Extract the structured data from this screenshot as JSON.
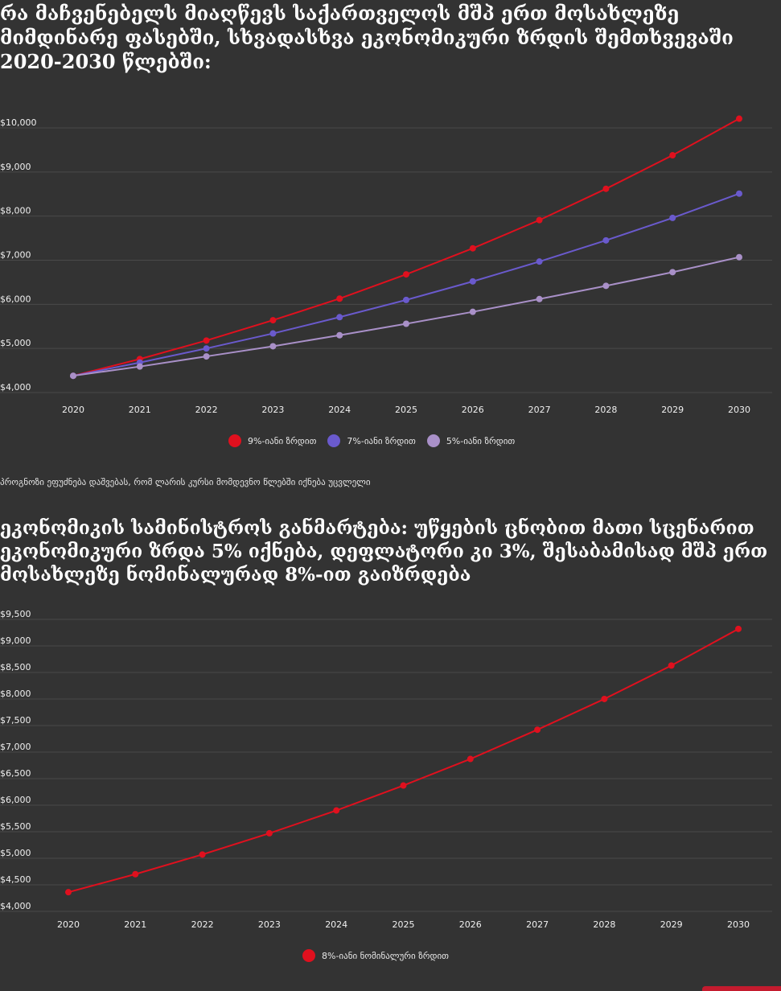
{
  "title1": "რა მაჩვენებელს მიაღწევს საქართველოს მშპ ერთ მოსახლეზე მიმდინარე ფასებში, სხვადასხვა ეკონომიკური ზრდის შემთხვევაში 2020-2030 წლებში:",
  "note": "პროგნოზი ეფუძნება დაშვებას, რომ ლარის კურსი მომდევნო წლებში იქნება უცვლელი",
  "title2": "ეკონომიკის სამინისტროს განმარტება: უწყების ცნობით მათი სცენარით ეკონომიკური ზრდა 5% იქნება, დეფლატორი კი 3%, შესაბამისად მშპ ერთ მოსახლეზე ნომინალურად 8%-ით გაიზრდება",
  "colors": {
    "background": "#333333",
    "red": "#e0101e",
    "blue": "#6a5acd",
    "lilac": "#a990c8",
    "grid": "#4a4a4a"
  },
  "chart_data": [
    {
      "type": "line",
      "x": [
        "2020",
        "2021",
        "2022",
        "2023",
        "2024",
        "2025",
        "2026",
        "2027",
        "2028",
        "2029",
        "2030"
      ],
      "ylim": [
        4000,
        10000
      ],
      "yticks": [
        "$4,000",
        "$5,000",
        "$6,000",
        "$7,000",
        "$8,000",
        "$9,000",
        "$10,000"
      ],
      "ytick_values": [
        4000,
        5000,
        6000,
        7000,
        8000,
        9000,
        10000
      ],
      "series": [
        {
          "name": "9%-იანი ზრდით",
          "color": "#e0101e",
          "values": [
            4270,
            4650,
            5070,
            5530,
            6020,
            6570,
            7160,
            7800,
            8510,
            9270,
            10100
          ]
        },
        {
          "name": "7%-იანი ზრდით",
          "color": "#6a5acd",
          "values": [
            4270,
            4570,
            4890,
            5230,
            5600,
            5990,
            6410,
            6860,
            7340,
            7850,
            8400
          ]
        },
        {
          "name": "5%-იანი ზრდით",
          "color": "#a990c8",
          "values": [
            4270,
            4480,
            4710,
            4940,
            5190,
            5450,
            5720,
            6010,
            6310,
            6620,
            6960
          ]
        }
      ],
      "legend": "bottom-center",
      "grid": true
    },
    {
      "type": "line",
      "x": [
        "2020",
        "2021",
        "2022",
        "2023",
        "2024",
        "2025",
        "2026",
        "2027",
        "2028",
        "2029",
        "2030"
      ],
      "ylim": [
        4000,
        9500
      ],
      "yticks": [
        "$4,000",
        "$4,500",
        "$5,000",
        "$5,500",
        "$6,000",
        "$6,500",
        "$7,000",
        "$7,500",
        "$8,000",
        "$8,500",
        "$9,000",
        "$9,500"
      ],
      "ytick_values": [
        4000,
        4500,
        5000,
        5500,
        6000,
        6500,
        7000,
        7500,
        8000,
        8500,
        9000,
        9500
      ],
      "series": [
        {
          "name": "8%-იანი ნომინალური ზრდით",
          "color": "#e0101e",
          "values": [
            4270,
            4610,
            4980,
            5380,
            5810,
            6280,
            6780,
            7330,
            7910,
            8540,
            9230
          ]
        }
      ],
      "legend": "bottom-center",
      "grid": true
    }
  ]
}
